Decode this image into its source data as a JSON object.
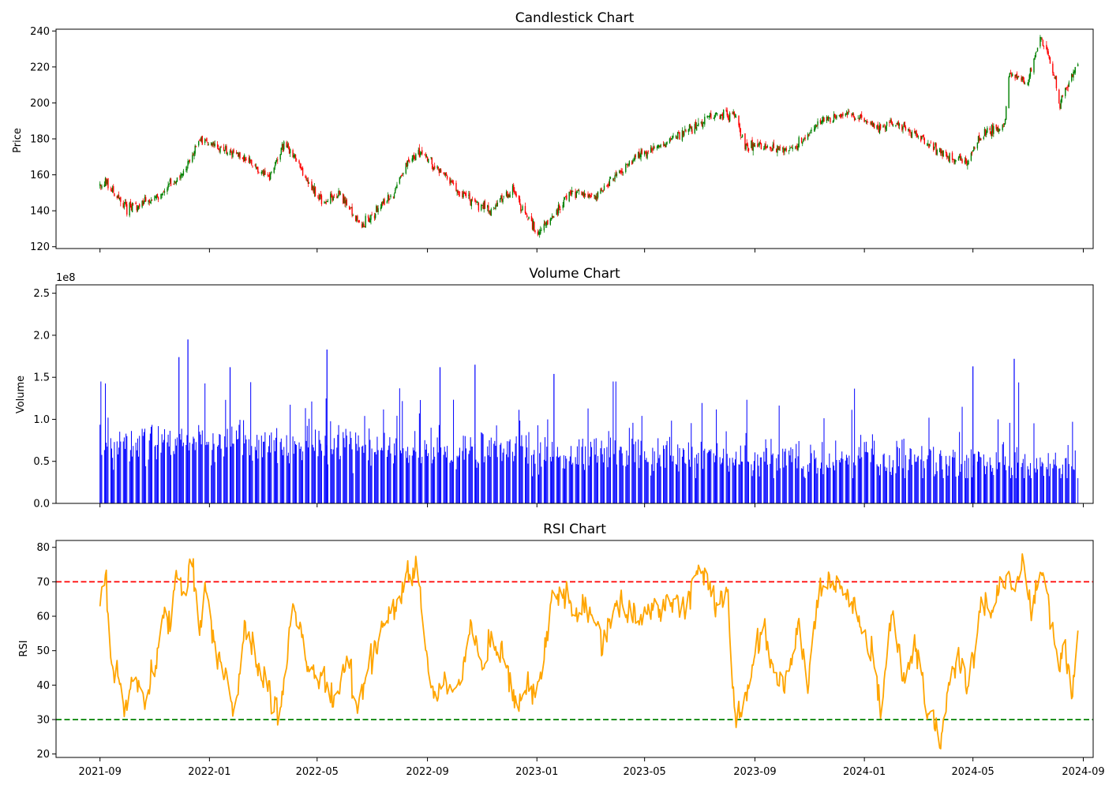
{
  "chart_data": [
    {
      "type": "candlestick",
      "title": "Candlestick Chart",
      "ylabel": "Price",
      "ylim": [
        119,
        241
      ],
      "yticks": [
        "120",
        "140",
        "160",
        "180",
        "200",
        "220",
        "240"
      ],
      "colors": {
        "up": "#008000",
        "down": "#ff0000"
      },
      "note_trend_keypoints": {
        "x": [
          "2021-09-01",
          "2021-09-08",
          "2021-10-01",
          "2021-11-05",
          "2021-12-05",
          "2021-12-20",
          "2022-01-10",
          "2022-02-01",
          "2022-03-08",
          "2022-03-25",
          "2022-05-08",
          "2022-05-25",
          "2022-06-20",
          "2022-07-28",
          "2022-08-08",
          "2022-08-25",
          "2022-10-05",
          "2022-11-10",
          "2022-12-05",
          "2023-01-01",
          "2023-02-08",
          "2023-03-08",
          "2023-04-15",
          "2023-06-10",
          "2023-07-15",
          "2023-08-10",
          "2023-08-20",
          "2023-09-05",
          "2023-10-15",
          "2023-11-15",
          "2023-12-15",
          "2024-01-15",
          "2024-02-01",
          "2024-03-01",
          "2024-04-01",
          "2024-04-25",
          "2024-05-10",
          "2024-06-05",
          "2024-06-10",
          "2024-07-01",
          "2024-07-15",
          "2024-07-30",
          "2024-08-05",
          "2024-08-25"
        ],
        "close": [
          154,
          156,
          141,
          148,
          162,
          180,
          176,
          172,
          158,
          178,
          143,
          150,
          131,
          152,
          166,
          173,
          151,
          140,
          152,
          126,
          150,
          148,
          168,
          182,
          193,
          193,
          176,
          176,
          174,
          190,
          194,
          186,
          190,
          182,
          170,
          167,
          182,
          188,
          215,
          212,
          236,
          218,
          199,
          222
        ]
      },
      "candles": {
        "first_date": "2021-09-01",
        "last_date": "2024-08-26"
      }
    },
    {
      "type": "bar",
      "title": "Volume Chart",
      "ylabel": "Volume",
      "multiplier_label": "1e8",
      "ylim": [
        0,
        2.6
      ],
      "yticks": [
        "0.0",
        "0.5",
        "1.0",
        "1.5",
        "2.0",
        "2.5"
      ],
      "color": "#0000ff",
      "notable_peaks": [
        {
          "date": "2021-12-08",
          "value": 1.95
        },
        {
          "date": "2021-11-28",
          "value": 1.74
        },
        {
          "date": "2022-05-12",
          "value": 1.83
        },
        {
          "date": "2024-06-16",
          "value": 1.72
        },
        {
          "date": "2022-10-24",
          "value": 1.65
        },
        {
          "date": "2024-05-01",
          "value": 1.63
        },
        {
          "date": "2022-01-24",
          "value": 1.62
        },
        {
          "date": "2022-09-15",
          "value": 1.62
        },
        {
          "date": "2023-01-20",
          "value": 1.54
        }
      ]
    },
    {
      "type": "line",
      "title": "RSI Chart",
      "ylabel": "RSI",
      "ylim": [
        19,
        82
      ],
      "yticks": [
        "20",
        "30",
        "40",
        "50",
        "60",
        "70",
        "80"
      ],
      "series": [
        {
          "color": "#ffa500",
          "x": [
            "2021-09-01",
            "2021-09-08",
            "2021-09-12",
            "2021-09-20",
            "2021-09-28",
            "2021-10-10",
            "2021-10-20",
            "2021-11-01",
            "2021-11-10",
            "2021-11-18",
            "2021-11-25",
            "2021-12-05",
            "2021-12-12",
            "2021-12-20",
            "2021-12-30",
            "2022-01-08",
            "2022-01-20",
            "2022-01-28",
            "2022-02-10",
            "2022-02-25",
            "2022-03-10",
            "2022-03-20",
            "2022-04-05",
            "2022-04-20",
            "2022-05-01",
            "2022-05-10",
            "2022-05-20",
            "2022-06-05",
            "2022-06-15",
            "2022-06-25",
            "2022-07-10",
            "2022-07-25",
            "2022-08-10",
            "2022-08-20",
            "2022-09-01",
            "2022-09-10",
            "2022-09-20",
            "2022-10-01",
            "2022-10-10",
            "2022-10-20",
            "2022-11-01",
            "2022-11-10",
            "2022-11-25",
            "2022-12-10",
            "2022-12-25",
            "2023-01-05",
            "2023-01-20",
            "2023-02-01",
            "2023-02-15",
            "2023-03-01",
            "2023-03-15",
            "2023-04-01",
            "2023-04-15",
            "2023-05-01",
            "2023-05-15",
            "2023-06-01",
            "2023-06-15",
            "2023-06-30",
            "2023-07-10",
            "2023-07-20",
            "2023-08-01",
            "2023-08-10",
            "2023-08-20",
            "2023-08-30",
            "2023-09-10",
            "2023-09-20",
            "2023-10-05",
            "2023-10-20",
            "2023-10-30",
            "2023-11-10",
            "2023-11-25",
            "2023-12-10",
            "2023-12-20",
            "2024-01-01",
            "2024-01-10",
            "2024-01-20",
            "2024-02-01",
            "2024-02-15",
            "2024-02-28",
            "2024-03-08",
            "2024-03-15",
            "2024-03-25",
            "2024-04-05",
            "2024-04-15",
            "2024-04-25",
            "2024-05-01",
            "2024-05-10",
            "2024-05-20",
            "2024-06-01",
            "2024-06-10",
            "2024-06-16",
            "2024-06-25",
            "2024-07-05",
            "2024-07-15",
            "2024-07-20",
            "2024-07-28",
            "2024-08-05",
            "2024-08-12",
            "2024-08-20",
            "2024-08-26"
          ],
          "y": [
            63,
            71,
            43,
            44,
            32,
            43,
            35,
            44,
            60,
            57,
            76,
            64,
            78,
            57,
            67,
            49,
            42,
            31,
            58,
            44,
            37,
            32,
            64,
            46,
            41,
            40,
            35,
            48,
            33,
            44,
            56,
            63,
            70,
            75,
            46,
            38,
            41,
            38,
            45,
            58,
            44,
            54,
            48,
            34,
            39,
            42,
            68,
            67,
            60,
            63,
            52,
            65,
            58,
            62,
            62,
            65,
            62,
            73,
            70,
            63,
            66,
            30,
            33,
            47,
            60,
            44,
            40,
            57,
            40,
            67,
            70,
            67,
            64,
            55,
            48,
            30,
            61,
            41,
            51,
            36,
            33,
            22,
            40,
            48,
            40,
            48,
            65,
            60,
            69,
            71,
            64,
            79,
            62,
            75,
            70,
            57,
            47,
            50,
            37,
            56
          ]
        }
      ],
      "hlines": [
        {
          "y": 70,
          "color": "#ff0000",
          "style": "dashed"
        },
        {
          "y": 30,
          "color": "#008000",
          "style": "dashed"
        }
      ]
    }
  ],
  "x_axis": {
    "ticks": [
      "2021-09",
      "2022-01",
      "2022-05",
      "2022-09",
      "2023-01",
      "2023-05",
      "2023-09",
      "2024-01",
      "2024-05",
      "2024-09"
    ],
    "range": [
      "2021-07-14",
      "2024-09-12"
    ]
  }
}
